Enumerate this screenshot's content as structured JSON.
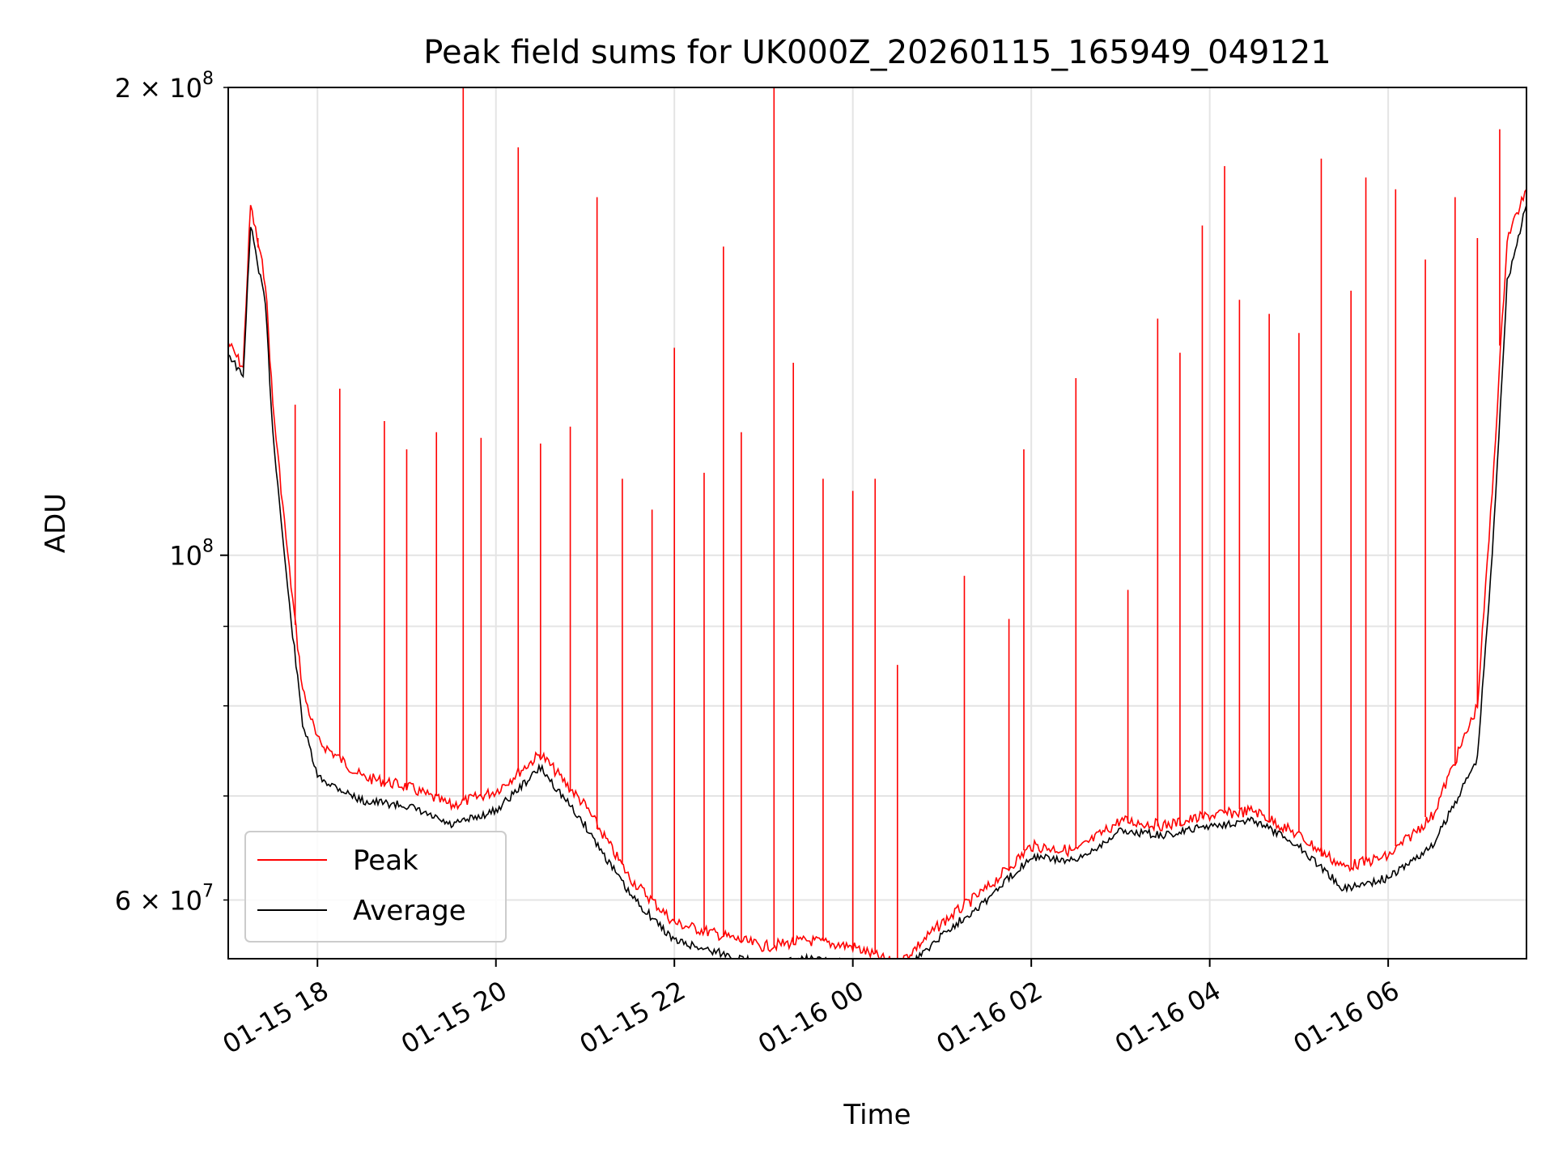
{
  "chart_data": {
    "type": "line",
    "title": "Peak field sums for UK000Z_20260115_165949_049121",
    "xlabel": "Time",
    "ylabel": "ADU",
    "y_scale": "log",
    "x_range": [
      "2026-01-15 17:00",
      "2026-01-16 07:33"
    ],
    "ylim": [
      55000000,
      200000000
    ],
    "grid": true,
    "legend_position": "lower-left",
    "x_ticks": [
      {
        "t": "2026-01-15 18:00",
        "label": "01-15 18"
      },
      {
        "t": "2026-01-15 20:00",
        "label": "01-15 20"
      },
      {
        "t": "2026-01-15 22:00",
        "label": "01-15 22"
      },
      {
        "t": "2026-01-16 00:00",
        "label": "01-16 00"
      },
      {
        "t": "2026-01-16 02:00",
        "label": "01-16 02"
      },
      {
        "t": "2026-01-16 04:00",
        "label": "01-16 04"
      },
      {
        "t": "2026-01-16 06:00",
        "label": "01-16 06"
      }
    ],
    "y_ticks_major": [
      {
        "value": 100000000,
        "label_base": "10",
        "label_exp": "8"
      }
    ],
    "y_ticks_minor": [
      {
        "value": 60000000,
        "label_base": "6 × 10",
        "label_exp": "7"
      },
      {
        "value": 70000000
      },
      {
        "value": 80000000
      },
      {
        "value": 90000000
      },
      {
        "value": 200000000,
        "label_base": "2 × 10",
        "label_exp": "8"
      }
    ],
    "series": [
      {
        "name": "Peak",
        "color": "#ff0000",
        "points": [
          [
            "2026-01-15 17:00",
            137000000
          ],
          [
            "2026-01-15 17:10",
            132000000
          ],
          [
            "2026-01-15 17:15",
            168000000
          ],
          [
            "2026-01-15 17:25",
            150000000
          ],
          [
            "2026-01-15 17:30",
            125000000
          ],
          [
            "2026-01-15 17:40",
            100000000
          ],
          [
            "2026-01-15 17:50",
            82000000
          ],
          [
            "2026-01-15 18:00",
            76000000
          ],
          [
            "2026-01-15 18:30",
            72000000
          ],
          [
            "2026-01-15 19:00",
            71000000
          ],
          [
            "2026-01-15 19:30",
            69000000
          ],
          [
            "2026-01-15 20:00",
            70500000
          ],
          [
            "2026-01-15 20:30",
            74500000
          ],
          [
            "2026-01-15 21:00",
            69000000
          ],
          [
            "2026-01-15 21:30",
            62000000
          ],
          [
            "2026-01-15 22:00",
            58000000
          ],
          [
            "2026-01-15 22:30",
            57000000
          ],
          [
            "2026-01-15 23:00",
            56000000
          ],
          [
            "2026-01-15 23:30",
            56500000
          ],
          [
            "2026-01-16 00:00",
            56000000
          ],
          [
            "2026-01-16 00:30",
            54500000
          ],
          [
            "2026-01-16 01:00",
            58000000
          ],
          [
            "2026-01-16 01:30",
            61000000
          ],
          [
            "2026-01-16 02:00",
            65000000
          ],
          [
            "2026-01-16 02:30",
            64500000
          ],
          [
            "2026-01-16 03:00",
            67500000
          ],
          [
            "2026-01-16 03:30",
            67000000
          ],
          [
            "2026-01-16 04:00",
            68000000
          ],
          [
            "2026-01-16 04:30",
            68500000
          ],
          [
            "2026-01-16 05:00",
            66000000
          ],
          [
            "2026-01-16 05:30",
            63000000
          ],
          [
            "2026-01-16 06:00",
            64000000
          ],
          [
            "2026-01-16 06:30",
            68000000
          ],
          [
            "2026-01-16 07:00",
            80000000
          ],
          [
            "2026-01-16 07:10",
            110000000
          ],
          [
            "2026-01-16 07:20",
            160000000
          ],
          [
            "2026-01-16 07:33",
            172000000
          ]
        ],
        "spikes": [
          [
            "2026-01-15 17:20",
            160000000
          ],
          [
            "2026-01-15 17:45",
            125000000
          ],
          [
            "2026-01-15 18:15",
            128000000
          ],
          [
            "2026-01-15 18:45",
            122000000
          ],
          [
            "2026-01-15 19:00",
            117000000
          ],
          [
            "2026-01-15 19:20",
            120000000
          ],
          [
            "2026-01-15 19:38",
            200000000
          ],
          [
            "2026-01-15 19:50",
            119000000
          ],
          [
            "2026-01-15 20:15",
            183000000
          ],
          [
            "2026-01-15 20:30",
            118000000
          ],
          [
            "2026-01-15 20:50",
            121000000
          ],
          [
            "2026-01-15 21:08",
            170000000
          ],
          [
            "2026-01-15 21:25",
            112000000
          ],
          [
            "2026-01-15 21:45",
            107000000
          ],
          [
            "2026-01-15 22:00",
            136000000
          ],
          [
            "2026-01-15 22:20",
            113000000
          ],
          [
            "2026-01-15 22:33",
            158000000
          ],
          [
            "2026-01-15 22:45",
            120000000
          ],
          [
            "2026-01-15 23:07",
            200000000
          ],
          [
            "2026-01-15 23:20",
            133000000
          ],
          [
            "2026-01-15 23:40",
            112000000
          ],
          [
            "2026-01-16 00:00",
            110000000
          ],
          [
            "2026-01-16 00:15",
            112000000
          ],
          [
            "2026-01-16 00:30",
            85000000
          ],
          [
            "2026-01-16 01:15",
            97000000
          ],
          [
            "2026-01-16 01:45",
            91000000
          ],
          [
            "2026-01-16 01:55",
            117000000
          ],
          [
            "2026-01-16 02:30",
            130000000
          ],
          [
            "2026-01-16 03:05",
            95000000
          ],
          [
            "2026-01-16 03:25",
            142000000
          ],
          [
            "2026-01-16 03:40",
            135000000
          ],
          [
            "2026-01-16 03:55",
            163000000
          ],
          [
            "2026-01-16 04:10",
            178000000
          ],
          [
            "2026-01-16 04:20",
            146000000
          ],
          [
            "2026-01-16 04:40",
            143000000
          ],
          [
            "2026-01-16 05:00",
            139000000
          ],
          [
            "2026-01-16 05:15",
            180000000
          ],
          [
            "2026-01-16 05:35",
            148000000
          ],
          [
            "2026-01-16 05:45",
            175000000
          ],
          [
            "2026-01-16 06:05",
            172000000
          ],
          [
            "2026-01-16 06:25",
            155000000
          ],
          [
            "2026-01-16 06:45",
            170000000
          ],
          [
            "2026-01-16 07:00",
            160000000
          ],
          [
            "2026-01-16 07:15",
            188000000
          ]
        ]
      },
      {
        "name": "Average",
        "color": "#000000",
        "points": [
          [
            "2026-01-15 17:00",
            135000000
          ],
          [
            "2026-01-15 17:10",
            130000000
          ],
          [
            "2026-01-15 17:15",
            163000000
          ],
          [
            "2026-01-15 17:25",
            145000000
          ],
          [
            "2026-01-15 17:30",
            120000000
          ],
          [
            "2026-01-15 17:40",
            95000000
          ],
          [
            "2026-01-15 17:50",
            78000000
          ],
          [
            "2026-01-15 18:00",
            72000000
          ],
          [
            "2026-01-15 18:30",
            69500000
          ],
          [
            "2026-01-15 19:00",
            69000000
          ],
          [
            "2026-01-15 19:30",
            67000000
          ],
          [
            "2026-01-15 20:00",
            68500000
          ],
          [
            "2026-01-15 20:30",
            73000000
          ],
          [
            "2026-01-15 21:00",
            67000000
          ],
          [
            "2026-01-15 21:30",
            60500000
          ],
          [
            "2026-01-15 22:00",
            56500000
          ],
          [
            "2026-01-15 22:30",
            55500000
          ],
          [
            "2026-01-15 23:00",
            54500000
          ],
          [
            "2026-01-15 23:30",
            55000000
          ],
          [
            "2026-01-16 00:00",
            54500000
          ],
          [
            "2026-01-16 00:30",
            53500000
          ],
          [
            "2026-01-16 01:00",
            57000000
          ],
          [
            "2026-01-16 01:30",
            60000000
          ],
          [
            "2026-01-16 02:00",
            64000000
          ],
          [
            "2026-01-16 02:30",
            63500000
          ],
          [
            "2026-01-16 03:00",
            66500000
          ],
          [
            "2026-01-16 03:30",
            66000000
          ],
          [
            "2026-01-16 04:00",
            67000000
          ],
          [
            "2026-01-16 04:30",
            67500000
          ],
          [
            "2026-01-16 05:00",
            65000000
          ],
          [
            "2026-01-16 05:30",
            61000000
          ],
          [
            "2026-01-16 06:00",
            62000000
          ],
          [
            "2026-01-16 06:30",
            65000000
          ],
          [
            "2026-01-16 07:00",
            74000000
          ],
          [
            "2026-01-16 07:10",
            100000000
          ],
          [
            "2026-01-16 07:20",
            150000000
          ],
          [
            "2026-01-16 07:33",
            168000000
          ]
        ]
      }
    ]
  }
}
